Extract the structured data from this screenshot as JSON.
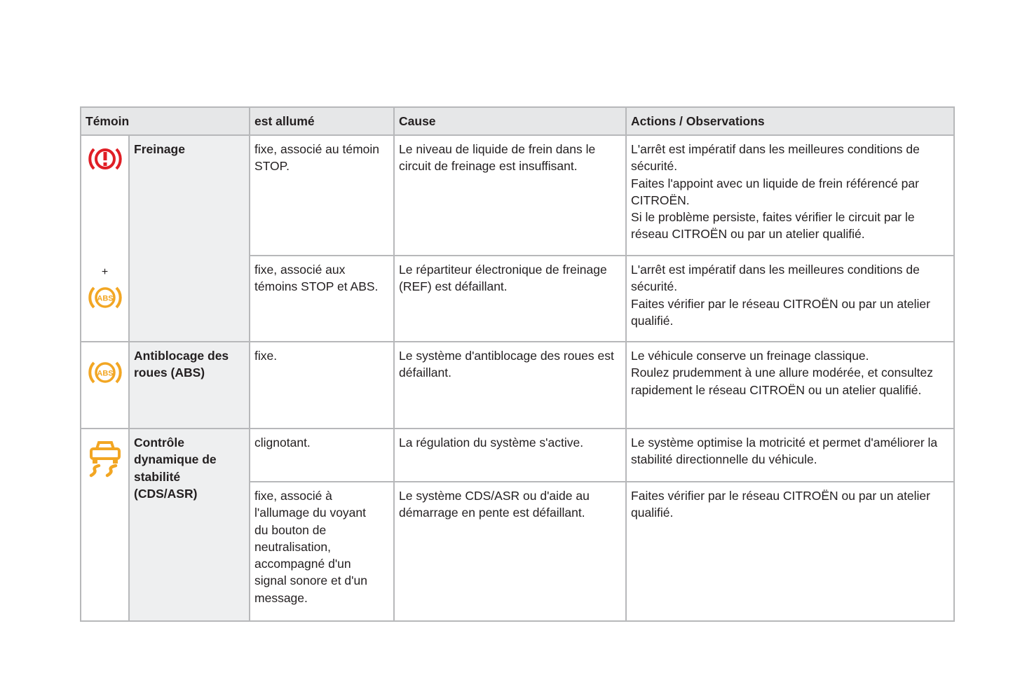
{
  "header": {
    "temoin": "Témoin",
    "allume": "est allumé",
    "cause": "Cause",
    "actions": "Actions / Observations"
  },
  "colors": {
    "red": "#e01e25",
    "amber": "#f2a623"
  },
  "rows": [
    {
      "label": "Freinage",
      "icons": [
        "brake-warning-icon",
        "abs-icon"
      ],
      "plus": "+",
      "cases": [
        {
          "allume": "fixe, associé au témoin STOP.",
          "cause": "Le niveau de liquide de frein dans le circuit de freinage est insuffisant.",
          "actions": [
            "L'arrêt est impératif dans les meilleures conditions de sécurité.",
            "Faites l'appoint avec un liquide de frein référencé par CITROËN.",
            "Si le problème persiste, faites vérifier le circuit par le réseau CITROËN ou par un atelier qualifié."
          ]
        },
        {
          "allume": "fixe, associé aux témoins STOP et ABS.",
          "cause": "Le répartiteur électronique de freinage (REF) est défaillant.",
          "actions": [
            "L'arrêt est impératif dans les meilleures conditions de sécurité.",
            "Faites vérifier par le réseau CITROËN ou par un atelier qualifié."
          ]
        }
      ]
    },
    {
      "label": "Antiblocage des roues (ABS)",
      "icons": [
        "abs-icon"
      ],
      "cases": [
        {
          "allume": "fixe.",
          "cause": "Le système d'antiblocage des roues est défaillant.",
          "actions": [
            "Le véhicule conserve un freinage classique.",
            "Roulez prudemment à une allure modérée, et consultez rapidement le réseau CITROËN ou un atelier qualifié."
          ]
        }
      ]
    },
    {
      "label": "Contrôle dynamique de stabilité (CDS/ASR)",
      "icons": [
        "stability-control-icon"
      ],
      "cases": [
        {
          "allume": "clignotant.",
          "cause": "La régulation du système s'active.",
          "actions": [
            "Le système optimise la motricité et permet d'améliorer la stabilité directionnelle du véhicule."
          ]
        },
        {
          "allume": "fixe, associé à l'allumage du voyant du bouton de neutralisation, accompagné d'un signal sonore et d'un message.",
          "cause": "Le système CDS/ASR ou d'aide au démarrage en pente est défaillant.",
          "actions": [
            "Faites vérifier par le réseau CITROËN ou par un atelier qualifié."
          ]
        }
      ]
    }
  ],
  "abs_text": "ABS"
}
